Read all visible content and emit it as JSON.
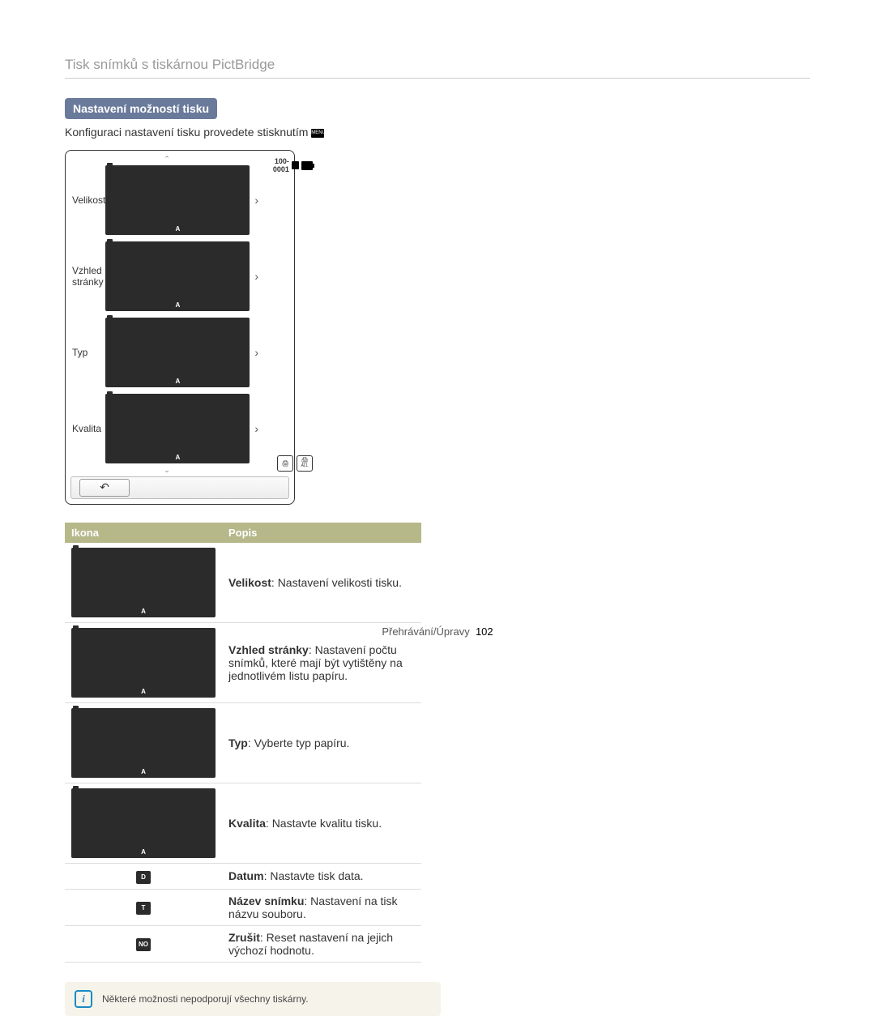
{
  "page": {
    "title": "Tisk snímků s tiskárnou PictBridge",
    "section_heading": "Nastavení možností tisku",
    "intro": "Konfiguraci nastavení tisku provedete stisknutím",
    "menu_button_text": "MENU"
  },
  "screen": {
    "counter": "100-0001",
    "in_label": "IN",
    "items": [
      {
        "label": "Velikost",
        "glyph": "A"
      },
      {
        "label": "Vzhled stránky",
        "glyph": "A"
      },
      {
        "label": "Typ",
        "glyph": "A"
      },
      {
        "label": "Kvalita",
        "glyph": "A"
      }
    ],
    "print_all_label": "ALL"
  },
  "table": {
    "headers": {
      "icon": "Ikona",
      "desc": "Popis"
    },
    "rows": [
      {
        "glyph": "A",
        "term": "Velikost",
        "text": ": Nastavení velikosti tisku."
      },
      {
        "glyph": "A",
        "term": "Vzhled stránky",
        "text": ": Nastavení počtu snímků, které mají být vytištěny na jednotlivém listu papíru."
      },
      {
        "glyph": "A",
        "term": "Typ",
        "text": ": Vyberte typ papíru."
      },
      {
        "glyph": "A",
        "term": "Kvalita",
        "text": ": Nastavte kvalitu tisku."
      },
      {
        "glyph": "D",
        "term": "Datum",
        "text": ": Nastavte tisk data."
      },
      {
        "glyph": "T",
        "term": "Název snímku",
        "text": ": Nastavení na tisk názvu souboru."
      },
      {
        "glyph": "NO",
        "term": "Zrušit",
        "text": ": Reset nastavení na jejich výchozí hodnotu."
      }
    ]
  },
  "note": "Některé možnosti nepodporují všechny tiskárny.",
  "footer": {
    "section": "Přehrávání/Úpravy",
    "page_num": "102"
  },
  "colors": {
    "title_gray": "#999999",
    "pill_bg": "#6a7a9b",
    "table_header_bg": "#b6b88a",
    "note_bg": "#f6f4ea",
    "note_icon": "#1a8bc6",
    "glyph_bg": "#2b2b2b"
  }
}
